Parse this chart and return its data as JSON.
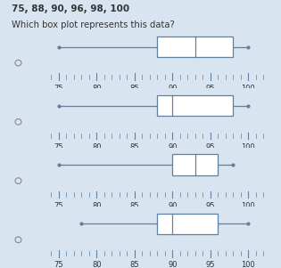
{
  "title_line1": "75, 88, 90, 96, 98, 100",
  "question": "Which box plot represents this data?",
  "bg_color": "#d8e4f0",
  "axis_color": "#6080a0",
  "box_color": "#6080a0",
  "text_color": "#333333",
  "radio_color": "#888888",
  "xlim_min": 73,
  "xlim_max": 103,
  "xticks": [
    75,
    80,
    85,
    90,
    95,
    100
  ],
  "fig_width": 3.15,
  "fig_height": 3.01,
  "plots": [
    {
      "min": 75,
      "q1": 88,
      "median": 93,
      "q3": 98,
      "max": 100
    },
    {
      "min": 75,
      "q1": 88,
      "median": 90,
      "q3": 98,
      "max": 100
    },
    {
      "min": 75,
      "q1": 90,
      "median": 93,
      "q3": 96,
      "max": 98
    },
    {
      "min": 78,
      "q1": 88,
      "median": 90,
      "q3": 96,
      "max": 100
    }
  ]
}
